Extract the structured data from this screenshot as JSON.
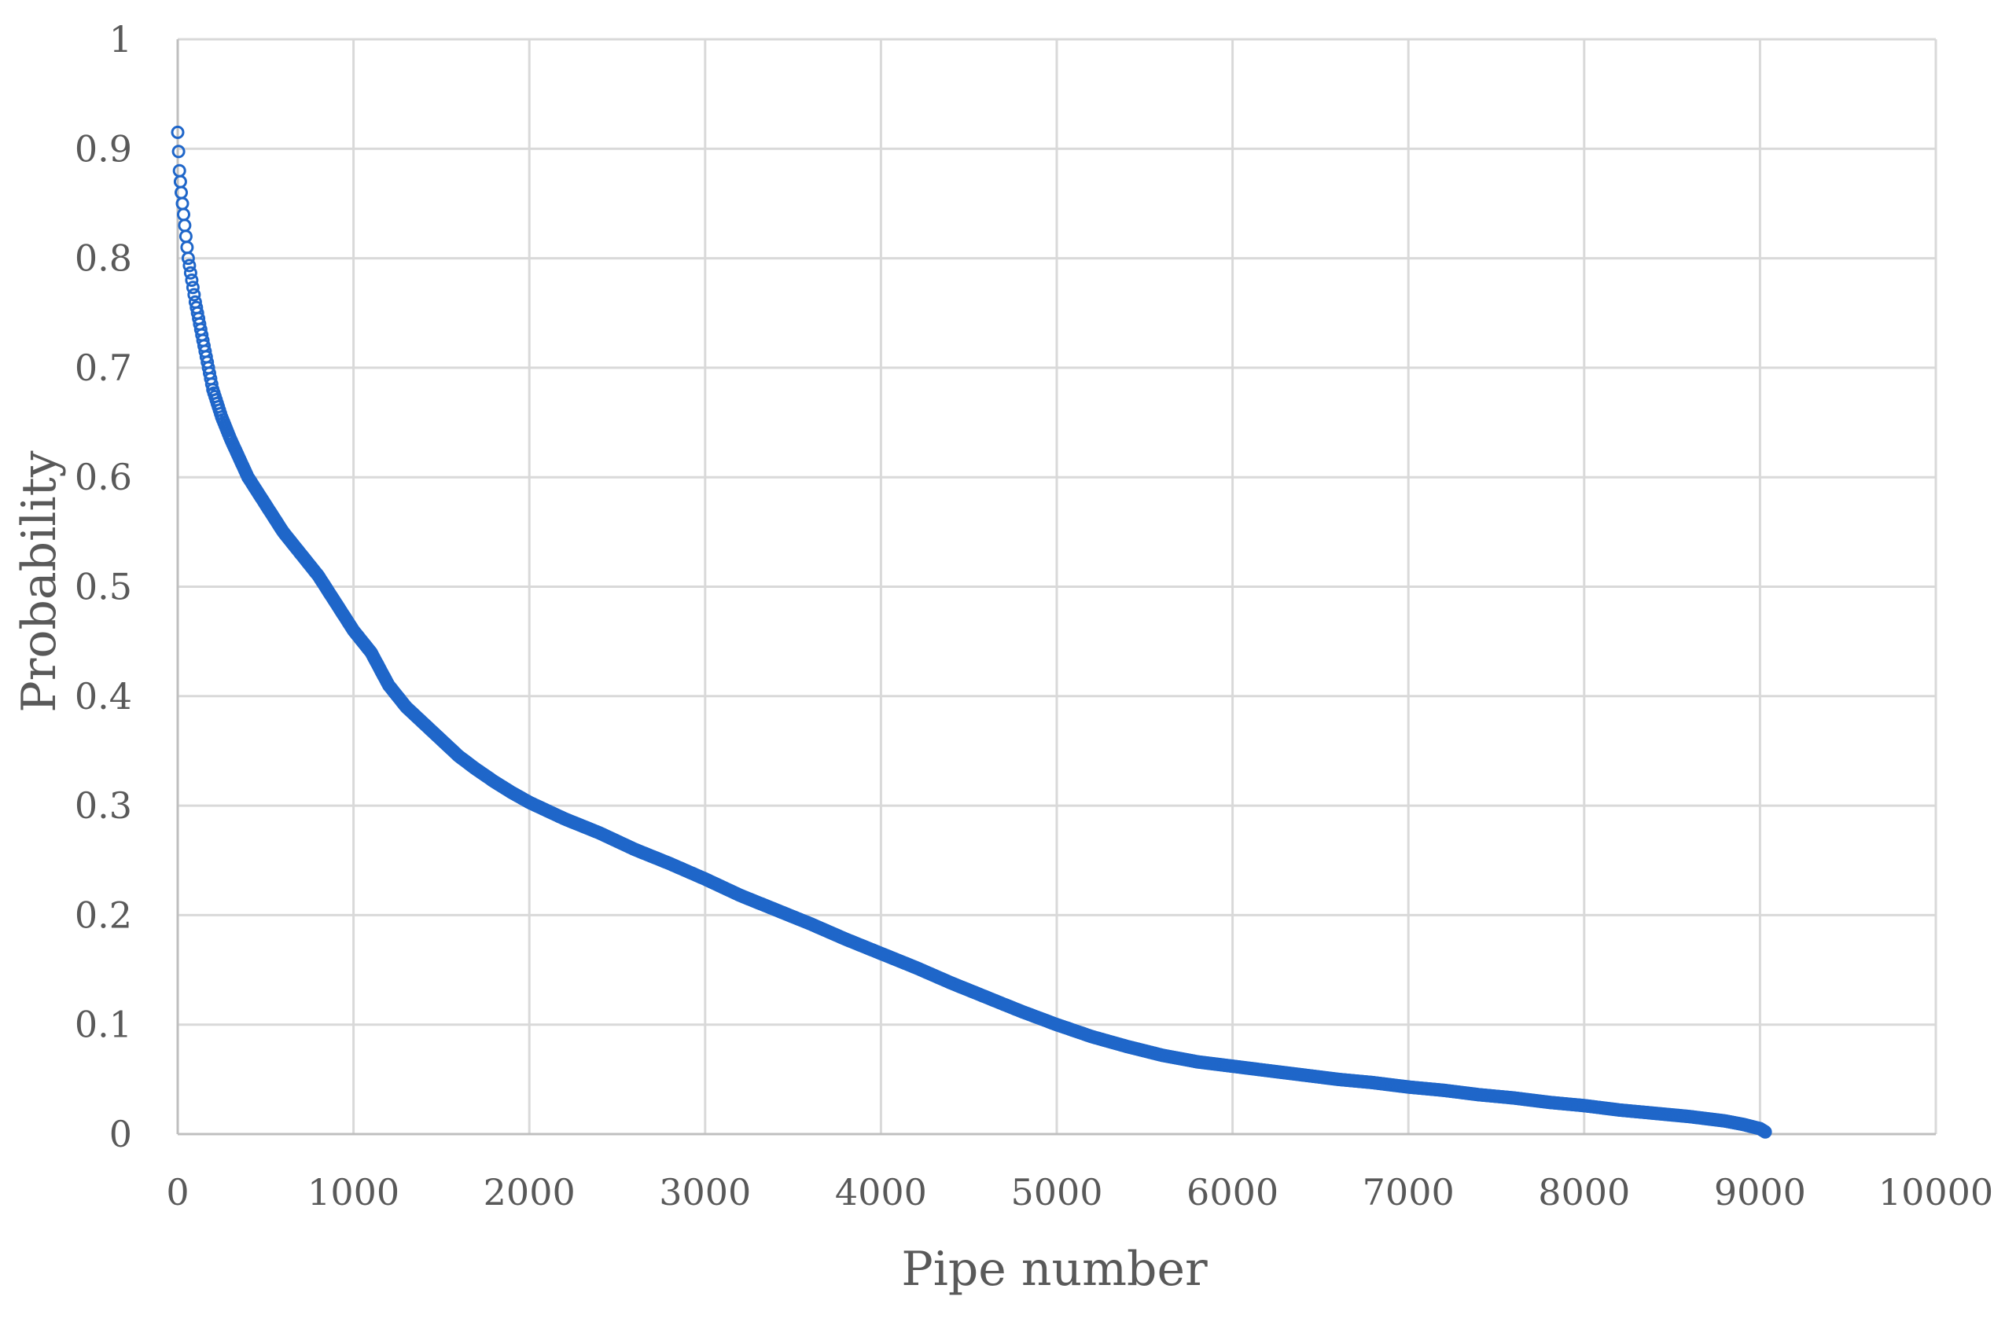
{
  "chart_data": {
    "type": "scatter",
    "title": "",
    "xlabel": "Pipe number",
    "ylabel": "Probability",
    "xlim": [
      0,
      10000
    ],
    "ylim": [
      0,
      1
    ],
    "x_ticks": [
      0,
      1000,
      2000,
      3000,
      4000,
      5000,
      6000,
      7000,
      8000,
      9000,
      10000
    ],
    "x_tick_labels": [
      "0",
      "1000",
      "2000",
      "3000",
      "4000",
      "5000",
      "6000",
      "7000",
      "8000",
      "9000",
      "10000"
    ],
    "y_ticks": [
      0,
      0.1,
      0.2,
      0.3,
      0.4,
      0.5,
      0.6,
      0.7,
      0.8,
      0.9,
      1
    ],
    "y_tick_labels": [
      "0",
      "0.1",
      "0.2",
      "0.3",
      "0.4",
      "0.5",
      "0.6",
      "0.7",
      "0.8",
      "0.9",
      "1"
    ],
    "grid": true,
    "legend": "none",
    "marker": "hollow-circle",
    "color": "#1f66c9",
    "series": [
      {
        "x": [
          0,
          10,
          20,
          40,
          60,
          80,
          100,
          150,
          200,
          250,
          300,
          400,
          500,
          600,
          700,
          800,
          900,
          1000,
          1100,
          1200,
          1300,
          1400,
          1500,
          1600,
          1700,
          1800,
          1900,
          2000,
          2200,
          2400,
          2600,
          2800,
          3000,
          3200,
          3400,
          3600,
          3800,
          4000,
          4200,
          4400,
          4600,
          4800,
          5000,
          5200,
          5400,
          5600,
          5800,
          6000,
          6200,
          6400,
          6600,
          6800,
          7000,
          7200,
          7400,
          7600,
          7800,
          8000,
          8200,
          8400,
          8600,
          8800,
          8900,
          9000,
          9030
        ],
        "y": [
          0.915,
          0.88,
          0.86,
          0.83,
          0.8,
          0.78,
          0.76,
          0.72,
          0.68,
          0.655,
          0.635,
          0.6,
          0.575,
          0.55,
          0.53,
          0.51,
          0.485,
          0.46,
          0.44,
          0.41,
          0.39,
          0.375,
          0.36,
          0.345,
          0.333,
          0.322,
          0.312,
          0.303,
          0.288,
          0.275,
          0.26,
          0.247,
          0.233,
          0.218,
          0.205,
          0.192,
          0.178,
          0.165,
          0.152,
          0.138,
          0.125,
          0.112,
          0.1,
          0.089,
          0.08,
          0.072,
          0.066,
          0.062,
          0.058,
          0.054,
          0.05,
          0.047,
          0.043,
          0.04,
          0.036,
          0.033,
          0.029,
          0.026,
          0.022,
          0.019,
          0.016,
          0.012,
          0.009,
          0.005,
          0.002
        ]
      }
    ]
  }
}
